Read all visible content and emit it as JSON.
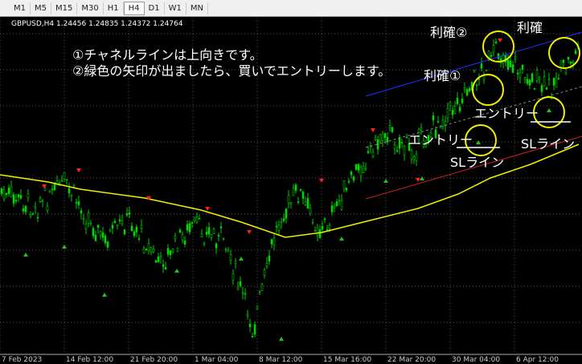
{
  "toolbar": {
    "timeframes": [
      "M1",
      "M5",
      "M15",
      "M30",
      "H1",
      "H4",
      "D1",
      "W1",
      "MN"
    ],
    "selected": "H4"
  },
  "chart_header": "GBPUSD,H4  1.24456 1.24835 1.24372 1.24764",
  "annotations": {
    "line1": "①チャネルラインは上向きです。",
    "line2": "②緑色の矢印が出ましたら、買いでエントリーします。",
    "take_profit_2": "利確②",
    "take_profit": "利確",
    "take_profit_1": "利確①",
    "entry_a": "エントリー",
    "sl_line_a": "SLライン",
    "entry_b": "エントリー",
    "sl_line_b": "SLライン"
  },
  "x_axis_labels": [
    "7 Feb 2023",
    "14 Feb 12:00",
    "21 Feb 20:00",
    "1 Mar 04:00",
    "8 Mar 12:00",
    "15 Mar 16:00",
    "22 Mar 20:00",
    "30 Mar 04:00",
    "6 Apr 12:00"
  ]
}
